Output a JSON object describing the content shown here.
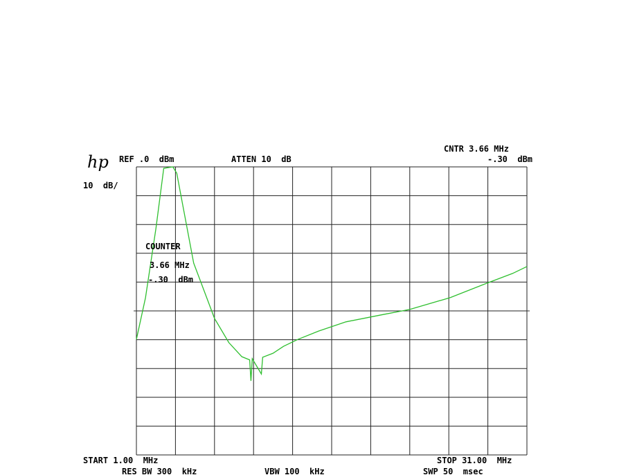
{
  "chart_data": {
    "type": "line",
    "annotations": [
      "hp",
      "REF .0  dBm",
      "ATTEN 10  dB",
      "CNTR 3.66 MHz",
      "-.30  dBm",
      "10  dB/",
      "COUNTER",
      "3.66 MHz",
      "-.30  dBm",
      "START 1.00  MHz",
      "RES BW 300  kHz",
      "VBW 100  kHz",
      "STOP 31.00  MHz",
      "SWP 50  msec"
    ],
    "series": [
      {
        "color": "#2fbf2f",
        "x": [
          1,
          1.7,
          2.5,
          3.1,
          3.8,
          4.1,
          4.6,
          5.4,
          6.2,
          7.0,
          8.1,
          9.1,
          9.7,
          9.8,
          9.9,
          10.6,
          10.7,
          11.5,
          12.3,
          13.4,
          15.0,
          17.1,
          19.8,
          22.0,
          25.1,
          27.8,
          29.9,
          31
        ],
        "values": [
          -59.9,
          -45.4,
          -21.4,
          -0.5,
          0,
          -2.2,
          -14.2,
          -33.4,
          -43,
          -52.6,
          -61,
          -65.9,
          -67,
          -74.3,
          -66.6,
          -71.9,
          -66.1,
          -64.7,
          -62.3,
          -59.9,
          -57,
          -53.8,
          -51.4,
          -49.5,
          -45.4,
          -40.6,
          -37,
          -34.6
        ]
      }
    ],
    "xlim": [
      1,
      31
    ],
    "xticks": [
      1,
      4,
      7,
      10,
      13,
      16,
      19,
      22,
      25,
      28,
      31
    ],
    "ylim": [
      -100,
      0
    ],
    "yticks": [
      -100,
      -90,
      -80,
      -70,
      -60,
      -50,
      -40,
      -30,
      -20,
      -10,
      0
    ],
    "grid": true
  }
}
